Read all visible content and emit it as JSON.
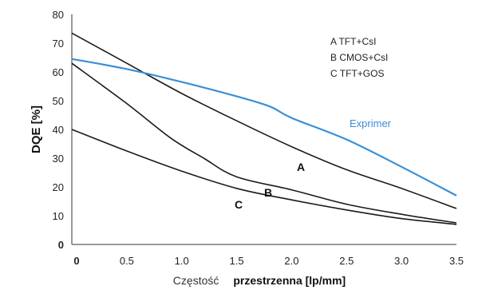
{
  "chart_data": {
    "type": "line",
    "title": "",
    "ylabel": "DQE [%]",
    "xlabel_parts": [
      "Częstość",
      "przestrzenna [lp/mm]"
    ],
    "xlim": [
      0,
      3.5
    ],
    "ylim": [
      0,
      80
    ],
    "x_ticks": [
      "0",
      "0.5",
      "1.0",
      "1.5",
      "2.0",
      "2.5",
      "3.0",
      "3.5"
    ],
    "y_ticks": [
      "0",
      "10",
      "20",
      "30",
      "40",
      "50",
      "60",
      "70",
      "80"
    ],
    "grid": false,
    "legend_entries": [
      "A  TFT+CsI",
      "B  CMOS+CsI",
      "C  TFT+GOS"
    ],
    "legend_position": "top-right",
    "series": [
      {
        "name": "A",
        "color": "#1a1a1a",
        "points": [
          [
            0,
            73.5
          ],
          [
            0.5,
            63
          ],
          [
            1.0,
            52.5
          ],
          [
            1.5,
            43
          ],
          [
            2.0,
            34
          ],
          [
            2.5,
            26
          ],
          [
            3.0,
            19.5
          ],
          [
            3.5,
            12.5
          ]
        ]
      },
      {
        "name": "B",
        "color": "#1a1a1a",
        "points": [
          [
            0,
            63
          ],
          [
            0.5,
            49
          ],
          [
            0.9,
            37
          ],
          [
            1.2,
            30
          ],
          [
            1.5,
            23.5
          ],
          [
            2.0,
            19
          ],
          [
            2.5,
            14
          ],
          [
            3.0,
            10.5
          ],
          [
            3.5,
            7.5
          ]
        ]
      },
      {
        "name": "C",
        "color": "#1a1a1a",
        "points": [
          [
            0,
            40
          ],
          [
            0.5,
            32.5
          ],
          [
            1.0,
            25.5
          ],
          [
            1.5,
            19.5
          ],
          [
            2.0,
            15.5
          ],
          [
            2.5,
            12
          ],
          [
            3.0,
            9
          ],
          [
            3.5,
            7
          ]
        ]
      },
      {
        "name": "Exprimer",
        "color": "#3a8fd4",
        "points": [
          [
            0,
            64.5
          ],
          [
            0.5,
            61
          ],
          [
            1.0,
            56.5
          ],
          [
            1.5,
            51.5
          ],
          [
            1.8,
            48
          ],
          [
            2.0,
            44
          ],
          [
            2.5,
            36.5
          ],
          [
            3.0,
            27
          ],
          [
            3.5,
            17
          ]
        ]
      }
    ]
  }
}
